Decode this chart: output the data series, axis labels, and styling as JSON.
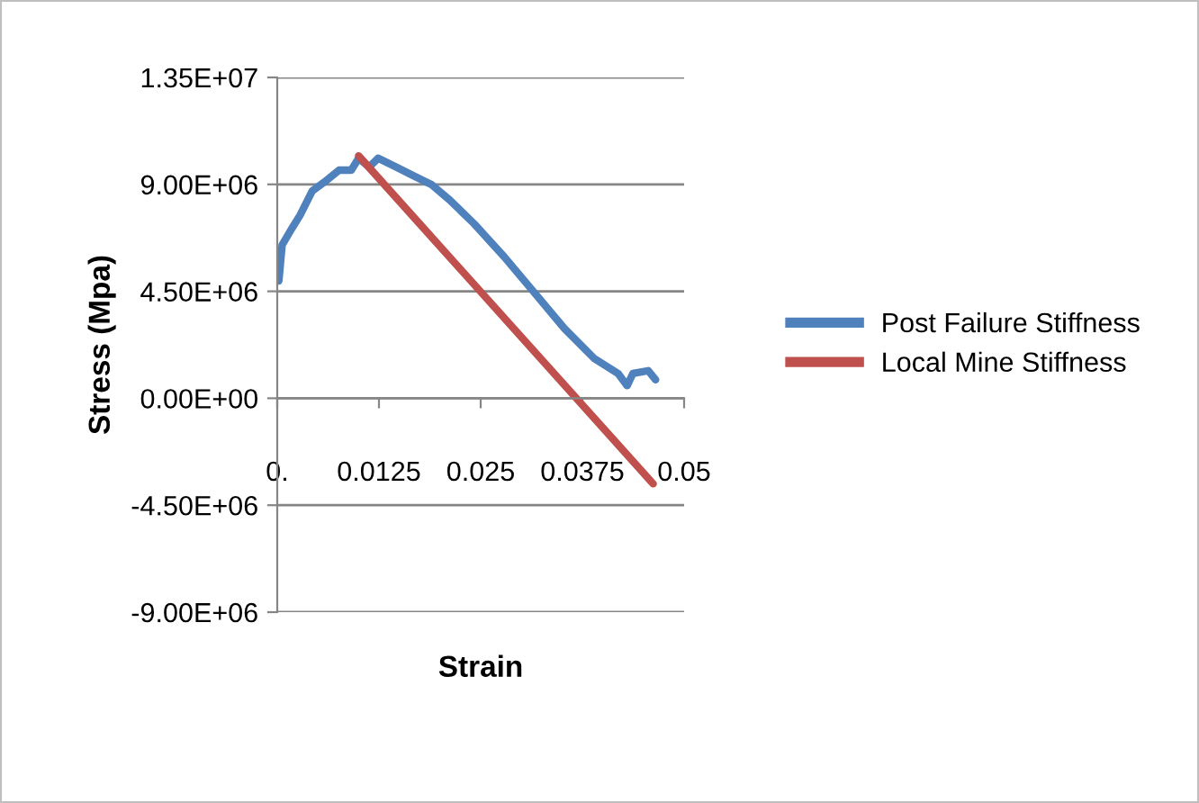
{
  "chart_data": {
    "type": "line",
    "xlabel": "Strain",
    "ylabel": "Stress (Mpa)",
    "series": [
      {
        "name": "Post Failure Stiffness",
        "color": "#4f81bd",
        "x": [
          0.0002,
          0.0006,
          0.0017,
          0.0028,
          0.0043,
          0.0058,
          0.0076,
          0.0091,
          0.01,
          0.0113,
          0.0124,
          0.0146,
          0.0168,
          0.019,
          0.0212,
          0.0242,
          0.0279,
          0.0316,
          0.0353,
          0.039,
          0.0419,
          0.043,
          0.0437,
          0.0456,
          0.0465
        ],
        "values": [
          4940000,
          6450000,
          7090000,
          7700000,
          8720000,
          9100000,
          9600000,
          9600000,
          10100000,
          9730000,
          10100000,
          9730000,
          9350000,
          8980000,
          8340000,
          7340000,
          5950000,
          4440000,
          2930000,
          1660000,
          1040000,
          530000,
          1040000,
          1160000,
          780000
        ]
      },
      {
        "name": "Local Mine Stiffness",
        "color": "#c0504d",
        "x": [
          0.01,
          0.0462
        ],
        "values": [
          10200000,
          -3600000
        ]
      }
    ],
    "xlim": [
      0,
      0.05
    ],
    "xticks": [
      {
        "value": 0,
        "label": "0."
      },
      0.0125,
      0.025,
      0.0375,
      0.05
    ],
    "ylim": [
      -9000000,
      13500000
    ],
    "yticks": [
      {
        "value": -9000000,
        "label": "-9.00E+06"
      },
      {
        "value": -4500000,
        "label": "-4.50E+06"
      },
      {
        "value": 0,
        "label": "0.00E+00"
      },
      {
        "value": 4500000,
        "label": "4.50E+06"
      },
      {
        "value": 9000000,
        "label": "9.00E+06"
      },
      {
        "value": 13500000,
        "label": "1.35E+07"
      }
    ],
    "grid": "y",
    "legend": "right",
    "marker": "none",
    "line_style": "solid"
  }
}
